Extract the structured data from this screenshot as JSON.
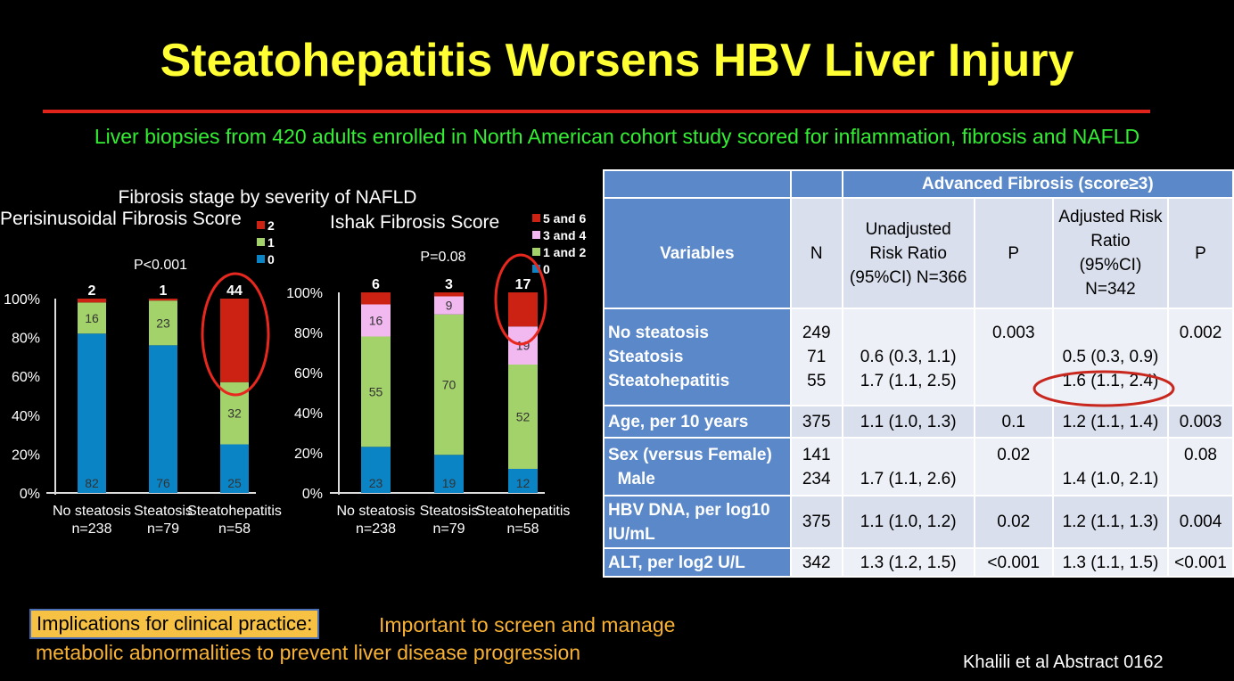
{
  "title": "Steatohepatitis Worsens HBV Liver Injury",
  "subtitle": "Liver biopsies from 420 adults enrolled in North American cohort study scored for inflammation, fibrosis and NAFLD",
  "figure_title": "Fibrosis stage by severity of NAFLD",
  "colors": {
    "blue": "#0b84c6",
    "green": "#a3d16a",
    "pink": "#f2b8f0",
    "red": "#cc2214",
    "highlight": "#e8281e"
  },
  "chart_data": [
    {
      "type": "bar",
      "stacked": true,
      "title": "Perisinusoidal Fibrosis Score",
      "p_value": "P<0.001",
      "categories": [
        "No steatosis",
        "Steatosis",
        "Steatohepatitis"
      ],
      "category_n": [
        "n=238",
        "n=79",
        "n=58"
      ],
      "yticks": [
        "0%",
        "20%",
        "40%",
        "60%",
        "80%",
        "100%"
      ],
      "ylim": [
        0,
        100
      ],
      "legend": "top-right",
      "series": [
        {
          "name": "0",
          "values": [
            82,
            76,
            25
          ],
          "color": "#0b84c6"
        },
        {
          "name": "1",
          "values": [
            16,
            23,
            32
          ],
          "color": "#a3d16a"
        },
        {
          "name": "2",
          "values": [
            2,
            1,
            44
          ],
          "color": "#cc2214"
        }
      ],
      "highlighted_category": "Steatohepatitis"
    },
    {
      "type": "bar",
      "stacked": true,
      "title": "Ishak Fibrosis Score",
      "p_value": "P=0.08",
      "categories": [
        "No steatosis",
        "Steatosis",
        "Steatohepatitis"
      ],
      "category_n": [
        "n=238",
        "n=79",
        "n=58"
      ],
      "yticks": [
        "0%",
        "20%",
        "40%",
        "60%",
        "80%",
        "100%"
      ],
      "ylim": [
        0,
        100
      ],
      "legend": "top-right",
      "series": [
        {
          "name": "0",
          "values": [
            23,
            19,
            12
          ],
          "color": "#0b84c6"
        },
        {
          "name": "1 and 2",
          "values": [
            55,
            70,
            52
          ],
          "color": "#a3d16a"
        },
        {
          "name": "3 and 4",
          "values": [
            16,
            9,
            19
          ],
          "color": "#f2b8f0"
        },
        {
          "name": "5 and 6",
          "values": [
            6,
            3,
            17
          ],
          "color": "#cc2214"
        }
      ],
      "highlighted_category": "Steatohepatitis"
    }
  ],
  "table": {
    "group_header": "Advanced Fibrosis (score≥3)",
    "headers": [
      "Variables",
      "N",
      "Unadjusted Risk Ratio (95%CI) N=366",
      "P",
      "Adjusted Risk Ratio (95%CI) N=342",
      "P"
    ],
    "rows": [
      {
        "var": [
          "No steatosis",
          "Steatosis",
          "Steatohepatitis"
        ],
        "n": [
          "249",
          "71",
          "55"
        ],
        "urr": [
          "",
          "0.6 (0.3, 1.1)",
          "1.7 (1.1, 2.5)"
        ],
        "up": [
          "0.003",
          "",
          ""
        ],
        "arr": [
          "",
          "0.5 (0.3, 0.9)",
          "1.6 (1.1, 2.4)"
        ],
        "ap": [
          "0.002",
          "",
          ""
        ]
      },
      {
        "var": [
          "Age, per 10 years"
        ],
        "n": [
          "375"
        ],
        "urr": [
          "1.1 (1.0, 1.3)"
        ],
        "up": [
          "0.1"
        ],
        "arr": [
          "1.2 (1.1, 1.4)"
        ],
        "ap": [
          "0.003"
        ]
      },
      {
        "var": [
          "Sex (versus Female)",
          "  Male"
        ],
        "n": [
          "141",
          "234"
        ],
        "urr": [
          "",
          "1.7 (1.1, 2.6)"
        ],
        "up": [
          "0.02",
          ""
        ],
        "arr": [
          "",
          "1.4 (1.0, 2.1)"
        ],
        "ap": [
          "0.08",
          ""
        ]
      },
      {
        "var": [
          "HBV DNA, per log10 IU/mL"
        ],
        "n": [
          "375"
        ],
        "urr": [
          "1.1 (1.0, 1.2)"
        ],
        "up": [
          "0.02"
        ],
        "arr": [
          "1.2 (1.1, 1.3)"
        ],
        "ap": [
          "0.004"
        ]
      },
      {
        "var": [
          "ALT, per log2 U/L"
        ],
        "n": [
          "342"
        ],
        "urr": [
          "1.3 (1.2, 1.5)"
        ],
        "up": [
          "<0.001"
        ],
        "arr": [
          "1.3 (1.1, 1.5)"
        ],
        "ap": [
          "<0.001"
        ]
      }
    ],
    "highlighted_cell": "1.6 (1.1, 2.4)"
  },
  "implications_label": "Implications for clinical practice:",
  "implications_line1": "Important to screen and manage",
  "implications_line2": "metabolic abnormalities to prevent liver disease progression",
  "citation": "Khalili et al Abstract 0162"
}
